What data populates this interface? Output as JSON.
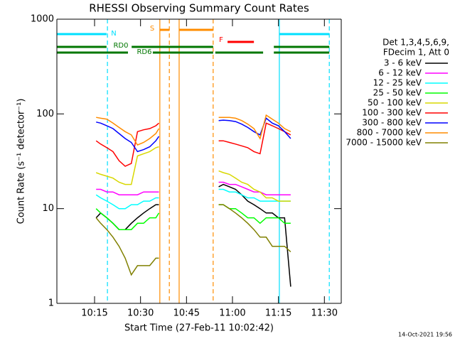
{
  "chart_data": {
    "type": "line",
    "title": "RHESSI Observing Summary Count Rates",
    "x_label": "Start Time (27-Feb-11 10:02:42)",
    "y_label": "Count Rate (s⁻¹ detector⁻¹)",
    "log_y": true,
    "xlim": [
      2.7,
      95.5
    ],
    "xticks": [
      {
        "value": 15,
        "label": "10:15"
      },
      {
        "value": 30,
        "label": "10:30"
      },
      {
        "value": 45,
        "label": "10:45"
      },
      {
        "value": 60,
        "label": "11:00"
      },
      {
        "value": 75,
        "label": "11:15"
      },
      {
        "value": 90,
        "label": "11:30"
      }
    ],
    "ylim": [
      1,
      1000
    ],
    "yticks": [
      1,
      10,
      100,
      1000
    ],
    "legend_header": [
      "Det 1,3,4,5,6,9,",
      "FDecim 1, Att 0"
    ],
    "footer": "14-Oct-2021 19:56",
    "x": [
      15.5,
      17,
      19,
      21,
      23,
      25,
      27,
      29,
      31,
      33,
      35,
      36,
      45,
      55.5,
      57,
      59,
      61,
      63,
      65,
      67,
      69,
      71,
      73,
      75,
      77,
      79
    ],
    "series": [
      {
        "name": "3 - 6 keV",
        "color": "#000000",
        "values": [
          8,
          9,
          8,
          7,
          6,
          6,
          7,
          8,
          9,
          10,
          11,
          11,
          null,
          17,
          18,
          17,
          16,
          14,
          12,
          11,
          10,
          9,
          9,
          8,
          8,
          1.5
        ]
      },
      {
        "name": "6 - 12 keV",
        "color": "#ff00ff",
        "values": [
          16,
          16,
          15,
          15,
          14,
          14,
          14,
          14,
          15,
          15,
          15,
          15,
          null,
          19,
          19,
          18,
          18,
          17,
          16,
          15,
          15,
          14,
          14,
          14,
          14,
          14
        ]
      },
      {
        "name": "12 - 25 keV",
        "color": "#00ffff",
        "values": [
          14,
          13,
          12,
          11,
          10,
          10,
          11,
          11,
          12,
          12,
          13,
          13,
          null,
          16,
          16,
          15,
          15,
          14,
          13,
          13,
          12,
          12,
          12,
          12,
          12,
          12
        ]
      },
      {
        "name": "25 - 50 keV",
        "color": "#00ff00",
        "values": [
          10,
          9,
          8,
          7,
          6,
          6,
          6,
          7,
          7,
          8,
          8,
          9,
          null,
          11,
          11,
          10,
          10,
          9,
          8,
          8,
          7,
          8,
          8,
          8,
          7,
          7
        ]
      },
      {
        "name": "50 - 100 keV",
        "color": "#d8d800",
        "values": [
          24,
          23,
          22,
          21,
          19,
          18,
          18,
          36,
          38,
          40,
          44,
          45,
          null,
          25,
          24,
          23,
          21,
          19,
          18,
          16,
          15,
          13,
          13,
          12,
          12,
          12
        ]
      },
      {
        "name": "100 - 300 keV",
        "color": "#ff0000",
        "values": [
          52,
          48,
          44,
          40,
          32,
          28,
          30,
          65,
          68,
          70,
          75,
          80,
          null,
          52,
          52,
          50,
          48,
          46,
          44,
          40,
          38,
          80,
          75,
          70,
          65,
          60
        ]
      },
      {
        "name": "300 - 800 keV",
        "color": "#0000ff",
        "values": [
          82,
          80,
          75,
          70,
          62,
          55,
          50,
          40,
          42,
          45,
          52,
          58,
          null,
          85,
          86,
          85,
          83,
          78,
          72,
          65,
          60,
          90,
          80,
          75,
          65,
          55
        ]
      },
      {
        "name": "800 - 7000 keV",
        "color": "#ff8c00",
        "values": [
          92,
          90,
          88,
          80,
          72,
          65,
          60,
          47,
          50,
          55,
          62,
          70,
          null,
          92,
          92,
          92,
          90,
          85,
          78,
          70,
          55,
          97,
          88,
          80,
          70,
          65
        ]
      },
      {
        "name": "7000 - 15000 keV",
        "color": "#808000",
        "values": [
          8,
          7,
          6,
          5,
          4,
          3,
          2,
          2.5,
          2.5,
          2.5,
          3,
          3,
          null,
          11,
          11,
          10,
          9,
          8,
          7,
          6,
          5,
          5,
          4,
          4,
          4,
          3.5
        ]
      }
    ],
    "flags": [
      {
        "label": "S",
        "color": "#ff8c00",
        "segments": [
          [
            36.3,
            39.4
          ],
          [
            42.6,
            53.7
          ]
        ]
      },
      {
        "label": "N",
        "color": "#00e0ff",
        "segments": [
          [
            2.7,
            18.9
          ],
          [
            75.3,
            91.6
          ]
        ]
      },
      {
        "label": "F",
        "color": "#ff0000",
        "segments": [
          [
            58.4,
            67.0
          ]
        ]
      },
      {
        "label": "RD0",
        "color": "#007700",
        "segments": [
          [
            2.7,
            18.9
          ],
          [
            27.1,
            53.7
          ],
          [
            73.5,
            91.6
          ]
        ]
      },
      {
        "label": "RD6",
        "color": "#007700",
        "segments": [
          [
            2.7,
            25.9
          ],
          [
            34.0,
            53.7
          ],
          [
            54.4,
            70.0
          ],
          [
            73.5,
            91.6
          ]
        ]
      }
    ],
    "events": [
      {
        "x": 19.2,
        "color": "#00e0ff",
        "style": "dashed"
      },
      {
        "x": 36.3,
        "color": "#ff8c00",
        "style": "solid"
      },
      {
        "x": 39.4,
        "color": "#ff8c00",
        "style": "dashed"
      },
      {
        "x": 42.6,
        "color": "#ff8c00",
        "style": "solid"
      },
      {
        "x": 53.7,
        "color": "#ff8c00",
        "style": "dashed"
      },
      {
        "x": 75.3,
        "color": "#00e0ff",
        "style": "solid"
      },
      {
        "x": 91.6,
        "color": "#00e0ff",
        "style": "dashed"
      }
    ]
  }
}
